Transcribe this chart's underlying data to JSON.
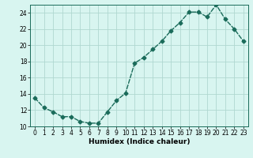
{
  "x": [
    0,
    1,
    2,
    3,
    4,
    5,
    6,
    7,
    8,
    9,
    10,
    11,
    12,
    13,
    14,
    15,
    16,
    17,
    18,
    19,
    20,
    21,
    22,
    23
  ],
  "y": [
    13.5,
    12.3,
    11.8,
    11.2,
    11.2,
    10.6,
    10.4,
    10.4,
    11.8,
    13.2,
    14.1,
    17.8,
    18.5,
    19.5,
    20.5,
    21.8,
    22.8,
    24.1,
    24.1,
    23.5,
    25.0,
    23.2,
    22.0,
    20.5
  ],
  "line_color": "#1a6b5a",
  "marker": "D",
  "marker_size": 2.5,
  "bg_color": "#d8f5f0",
  "grid_color": "#b0d8d0",
  "xlabel": "Humidex (Indice chaleur)",
  "xlim": [
    -0.5,
    23.5
  ],
  "ylim": [
    10,
    25
  ],
  "yticks": [
    10,
    12,
    14,
    16,
    18,
    20,
    22,
    24
  ],
  "xticks": [
    0,
    1,
    2,
    3,
    4,
    5,
    6,
    7,
    8,
    9,
    10,
    11,
    12,
    13,
    14,
    15,
    16,
    17,
    18,
    19,
    20,
    21,
    22,
    23
  ],
  "xlabel_fontsize": 6.5,
  "tick_fontsize": 5.5,
  "line_width": 1.0
}
